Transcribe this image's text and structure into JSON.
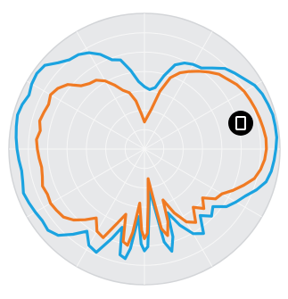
{
  "colors": {
    "plot_background": "#e7e8ea",
    "grid": "#f7f7f7",
    "outer_ring": "#d3d5d8",
    "badge": "#000000"
  },
  "badge": {
    "icon": "phone-icon"
  },
  "chart_data": {
    "type": "polar-line",
    "title": "",
    "angle_unit": "degrees",
    "angle_zero": "top",
    "angle_direction": "clockwise",
    "rlim": [
      0,
      1
    ],
    "rings": 7,
    "spokes": 12,
    "grid": true,
    "legend": "none",
    "series": [
      {
        "color": "#1ba3e0",
        "points": [
          [
            0,
            0.46
          ],
          [
            5,
            0.44
          ],
          [
            10,
            0.46
          ],
          [
            15,
            0.56
          ],
          [
            20,
            0.66
          ],
          [
            25,
            0.7
          ],
          [
            30,
            0.72
          ],
          [
            35,
            0.73
          ],
          [
            40,
            0.78
          ],
          [
            45,
            0.84
          ],
          [
            50,
            0.87
          ],
          [
            55,
            0.9
          ],
          [
            60,
            0.94
          ],
          [
            65,
            0.96
          ],
          [
            70,
            0.97
          ],
          [
            75,
            0.98
          ],
          [
            80,
            0.98
          ],
          [
            85,
            0.98
          ],
          [
            90,
            0.97
          ],
          [
            95,
            0.96
          ],
          [
            100,
            0.95
          ],
          [
            105,
            0.93
          ],
          [
            110,
            0.88
          ],
          [
            115,
            0.82
          ],
          [
            120,
            0.78
          ],
          [
            125,
            0.74
          ],
          [
            130,
            0.66
          ],
          [
            135,
            0.7
          ],
          [
            140,
            0.64
          ],
          [
            145,
            0.76
          ],
          [
            150,
            0.72
          ],
          [
            155,
            0.62
          ],
          [
            160,
            0.5
          ],
          [
            162,
            0.68
          ],
          [
            165,
            0.78
          ],
          [
            168,
            0.7
          ],
          [
            170,
            0.45
          ],
          [
            173,
            0.3
          ],
          [
            176,
            0.48
          ],
          [
            178,
            0.72
          ],
          [
            180,
            0.75
          ],
          [
            182,
            0.7
          ],
          [
            185,
            0.5
          ],
          [
            188,
            0.74
          ],
          [
            190,
            0.82
          ],
          [
            193,
            0.8
          ],
          [
            196,
            0.6
          ],
          [
            200,
            0.7
          ],
          [
            205,
            0.84
          ],
          [
            210,
            0.82
          ],
          [
            215,
            0.74
          ],
          [
            220,
            0.82
          ],
          [
            225,
            0.9
          ],
          [
            230,
            0.93
          ],
          [
            235,
            0.92
          ],
          [
            240,
            0.93
          ],
          [
            245,
            0.94
          ],
          [
            250,
            0.95
          ],
          [
            255,
            0.93
          ],
          [
            260,
            0.92
          ],
          [
            265,
            0.93
          ],
          [
            270,
            0.94
          ],
          [
            275,
            0.95
          ],
          [
            280,
            0.96
          ],
          [
            285,
            0.97
          ],
          [
            290,
            0.96
          ],
          [
            295,
            0.94
          ],
          [
            300,
            0.96
          ],
          [
            305,
            0.97
          ],
          [
            310,
            0.96
          ],
          [
            315,
            0.9
          ],
          [
            320,
            0.86
          ],
          [
            325,
            0.85
          ],
          [
            330,
            0.82
          ],
          [
            335,
            0.77
          ],
          [
            340,
            0.7
          ],
          [
            345,
            0.68
          ],
          [
            350,
            0.59
          ],
          [
            355,
            0.5
          ]
        ]
      },
      {
        "color": "#f07a23",
        "points": [
          [
            0,
            0.2
          ],
          [
            5,
            0.24
          ],
          [
            10,
            0.3
          ],
          [
            15,
            0.44
          ],
          [
            20,
            0.56
          ],
          [
            25,
            0.62
          ],
          [
            30,
            0.66
          ],
          [
            35,
            0.7
          ],
          [
            40,
            0.74
          ],
          [
            45,
            0.78
          ],
          [
            50,
            0.8
          ],
          [
            55,
            0.83
          ],
          [
            60,
            0.85
          ],
          [
            65,
            0.86
          ],
          [
            70,
            0.87
          ],
          [
            75,
            0.88
          ],
          [
            80,
            0.89
          ],
          [
            85,
            0.9
          ],
          [
            90,
            0.9
          ],
          [
            95,
            0.89
          ],
          [
            100,
            0.87
          ],
          [
            105,
            0.84
          ],
          [
            110,
            0.78
          ],
          [
            115,
            0.72
          ],
          [
            120,
            0.66
          ],
          [
            125,
            0.64
          ],
          [
            130,
            0.56
          ],
          [
            135,
            0.62
          ],
          [
            140,
            0.56
          ],
          [
            145,
            0.66
          ],
          [
            150,
            0.62
          ],
          [
            155,
            0.52
          ],
          [
            160,
            0.4
          ],
          [
            162,
            0.56
          ],
          [
            165,
            0.66
          ],
          [
            168,
            0.6
          ],
          [
            170,
            0.36
          ],
          [
            173,
            0.22
          ],
          [
            176,
            0.4
          ],
          [
            178,
            0.62
          ],
          [
            180,
            0.66
          ],
          [
            182,
            0.6
          ],
          [
            185,
            0.4
          ],
          [
            188,
            0.62
          ],
          [
            190,
            0.72
          ],
          [
            193,
            0.7
          ],
          [
            196,
            0.5
          ],
          [
            200,
            0.58
          ],
          [
            205,
            0.72
          ],
          [
            210,
            0.7
          ],
          [
            215,
            0.62
          ],
          [
            220,
            0.68
          ],
          [
            225,
            0.74
          ],
          [
            230,
            0.78
          ],
          [
            235,
            0.79
          ],
          [
            240,
            0.8
          ],
          [
            245,
            0.79
          ],
          [
            250,
            0.8
          ],
          [
            255,
            0.78
          ],
          [
            260,
            0.77
          ],
          [
            265,
            0.78
          ],
          [
            270,
            0.79
          ],
          [
            275,
            0.8
          ],
          [
            280,
            0.78
          ],
          [
            285,
            0.8
          ],
          [
            290,
            0.79
          ],
          [
            295,
            0.78
          ],
          [
            300,
            0.8
          ],
          [
            305,
            0.78
          ],
          [
            310,
            0.74
          ],
          [
            315,
            0.66
          ],
          [
            320,
            0.63
          ],
          [
            325,
            0.62
          ],
          [
            330,
            0.58
          ],
          [
            335,
            0.52
          ],
          [
            340,
            0.46
          ],
          [
            345,
            0.43
          ],
          [
            350,
            0.36
          ],
          [
            355,
            0.26
          ]
        ]
      }
    ]
  }
}
